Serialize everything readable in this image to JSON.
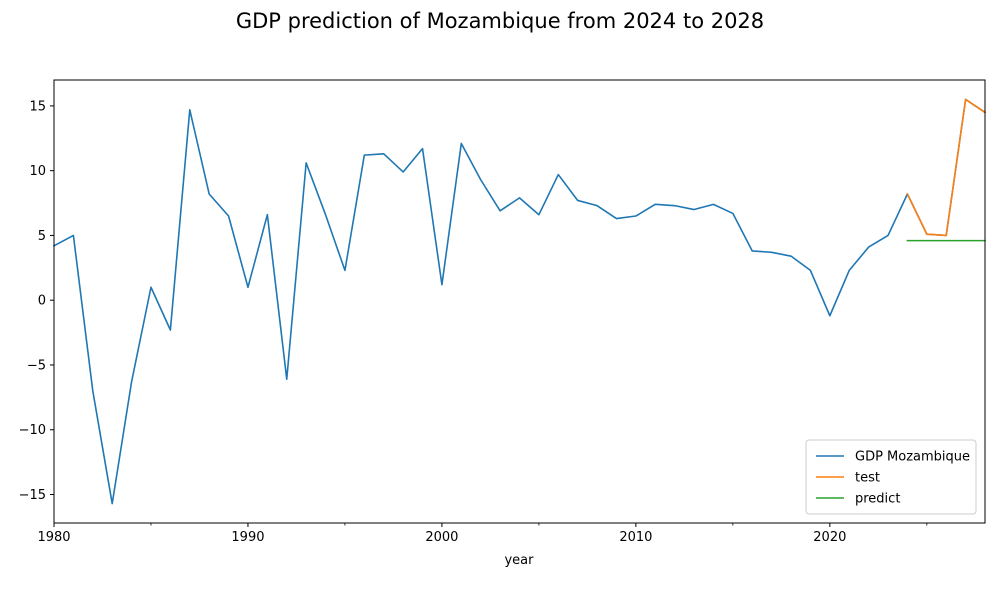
{
  "chart_data": {
    "type": "line",
    "title": "GDP prediction of Mozambique from 2024 to 2028",
    "xlabel": "year",
    "ylabel": "",
    "xlim": [
      1980,
      2028
    ],
    "ylim": [
      -17.2,
      17.0
    ],
    "x_major_ticks": [
      1980,
      1990,
      2000,
      2010,
      2020
    ],
    "x_minor_ticks": [
      1985,
      1995,
      2005,
      2015,
      2025
    ],
    "y_ticks": [
      -15,
      -10,
      -5,
      0,
      5,
      10,
      15
    ],
    "legend_position": "bottom-right",
    "series": [
      {
        "name": "GDP Mozambique",
        "color": "#1f77b4",
        "x": [
          1980,
          1981,
          1982,
          1983,
          1984,
          1985,
          1986,
          1987,
          1988,
          1989,
          1990,
          1991,
          1992,
          1993,
          1994,
          1995,
          1996,
          1997,
          1998,
          1999,
          2000,
          2001,
          2002,
          2003,
          2004,
          2005,
          2006,
          2007,
          2008,
          2009,
          2010,
          2011,
          2012,
          2013,
          2014,
          2015,
          2016,
          2017,
          2018,
          2019,
          2020,
          2021,
          2022,
          2023,
          2024,
          2025,
          2026,
          2027,
          2028
        ],
        "values": [
          4.2,
          5.0,
          -7.0,
          -15.7,
          -6.3,
          1.0,
          -2.3,
          14.7,
          8.2,
          6.5,
          1.0,
          6.6,
          -6.1,
          10.6,
          6.6,
          2.3,
          11.2,
          11.3,
          9.9,
          11.7,
          1.2,
          12.1,
          9.3,
          6.9,
          7.9,
          6.6,
          9.7,
          7.7,
          7.3,
          6.3,
          6.5,
          7.4,
          7.3,
          7.0,
          7.4,
          6.7,
          3.8,
          3.7,
          3.4,
          2.3,
          -1.2,
          2.3,
          4.1,
          5.0,
          8.2,
          5.1,
          5.0,
          15.5,
          14.5
        ]
      },
      {
        "name": "test",
        "color": "#ff7f0e",
        "x": [
          2024,
          2025,
          2026,
          2027,
          2028
        ],
        "values": [
          8.2,
          5.1,
          5.0,
          15.5,
          14.5
        ]
      },
      {
        "name": "predict",
        "color": "#2ca02c",
        "x": [
          2024,
          2025,
          2026,
          2027,
          2028
        ],
        "values": [
          4.6,
          4.6,
          4.6,
          4.6,
          4.6
        ]
      }
    ]
  }
}
